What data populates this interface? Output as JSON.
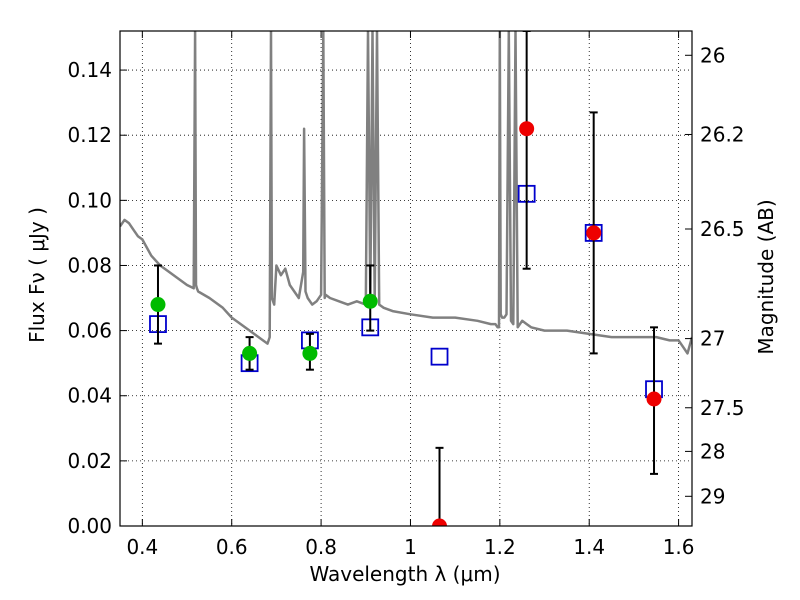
{
  "chart_data": {
    "type": "scatter",
    "xlabel": "Wavelength  λ (μm)",
    "ylabel_left": "Flux  Fν  ( μJy )",
    "ylabel_right": "Magnitude (AB)",
    "xlim": [
      0.35,
      1.63
    ],
    "ylim": [
      0.0,
      0.152
    ],
    "grid": true,
    "x_ticks": [
      0.4,
      0.6,
      0.8,
      1.0,
      1.2,
      1.4,
      1.6
    ],
    "x_tick_labels": [
      "0.4",
      "0.6",
      "0.8",
      "1",
      "1.2",
      "1.4",
      "1.6"
    ],
    "y_ticks": [
      0.0,
      0.02,
      0.04,
      0.06,
      0.08,
      0.1,
      0.12,
      0.14
    ],
    "y_tick_labels": [
      "0.00",
      "0.02",
      "0.04",
      "0.06",
      "0.08",
      "0.10",
      "0.12",
      "0.14"
    ],
    "mag_ticks": [
      26,
      26.2,
      26.5,
      27,
      27.5,
      28,
      29
    ],
    "mag_tick_labels": [
      "26",
      "26.2",
      "26.5",
      "27",
      "27.5",
      "28",
      "29"
    ],
    "colors": {
      "template": "#808080",
      "model": "#0000cc",
      "detected": "#00bb00",
      "nir": "#ee0000",
      "errorbar": "#000000"
    },
    "template_spectrum": {
      "name": "",
      "x": [
        0.35,
        0.36,
        0.37,
        0.38,
        0.39,
        0.4,
        0.42,
        0.44,
        0.46,
        0.48,
        0.5,
        0.515,
        0.518,
        0.52,
        0.522,
        0.525,
        0.55,
        0.58,
        0.6,
        0.62,
        0.65,
        0.67,
        0.68,
        0.685,
        0.688,
        0.69,
        0.695,
        0.7,
        0.71,
        0.72,
        0.73,
        0.74,
        0.75,
        0.76,
        0.762,
        0.765,
        0.77,
        0.78,
        0.79,
        0.8,
        0.805,
        0.808,
        0.81,
        0.82,
        0.84,
        0.86,
        0.88,
        0.9,
        0.905,
        0.91,
        0.915,
        0.92,
        0.925,
        0.93,
        0.94,
        0.96,
        1.0,
        1.05,
        1.1,
        1.15,
        1.18,
        1.19,
        1.195,
        1.198,
        1.2,
        1.202,
        1.205,
        1.21,
        1.215,
        1.22,
        1.225,
        1.23,
        1.235,
        1.24,
        1.25,
        1.26,
        1.27,
        1.3,
        1.35,
        1.4,
        1.45,
        1.5,
        1.55,
        1.58,
        1.6,
        1.61,
        1.62,
        1.63
      ],
      "y": [
        0.092,
        0.094,
        0.093,
        0.091,
        0.089,
        0.088,
        0.083,
        0.08,
        0.078,
        0.076,
        0.074,
        0.073,
        0.152,
        0.074,
        0.073,
        0.072,
        0.07,
        0.067,
        0.064,
        0.062,
        0.059,
        0.057,
        0.056,
        0.058,
        0.152,
        0.07,
        0.068,
        0.08,
        0.077,
        0.079,
        0.074,
        0.072,
        0.07,
        0.078,
        0.122,
        0.072,
        0.07,
        0.068,
        0.069,
        0.071,
        0.152,
        0.07,
        0.071,
        0.07,
        0.069,
        0.068,
        0.069,
        0.068,
        0.152,
        0.07,
        0.152,
        0.069,
        0.152,
        0.068,
        0.067,
        0.066,
        0.065,
        0.064,
        0.064,
        0.063,
        0.062,
        0.062,
        0.061,
        0.061,
        0.152,
        0.065,
        0.064,
        0.064,
        0.065,
        0.152,
        0.063,
        0.062,
        0.152,
        0.061,
        0.063,
        0.062,
        0.061,
        0.06,
        0.06,
        0.059,
        0.058,
        0.058,
        0.058,
        0.057,
        0.057,
        0.055,
        0.053,
        0.058
      ]
    },
    "model_points": {
      "name": "",
      "x": [
        0.435,
        0.64,
        0.775,
        0.91,
        1.065,
        1.26,
        1.41,
        1.545
      ],
      "y": [
        0.062,
        0.05,
        0.057,
        0.061,
        0.052,
        0.102,
        0.09,
        0.042
      ]
    },
    "observed_optical": {
      "name": "",
      "x": [
        0.435,
        0.64,
        0.775,
        0.91
      ],
      "y": [
        0.068,
        0.053,
        0.053,
        0.069
      ],
      "yerr_low": [
        0.056,
        0.048,
        0.048,
        0.06
      ],
      "yerr_high": [
        0.08,
        0.058,
        0.059,
        0.08
      ]
    },
    "observed_nir": {
      "name": "",
      "x": [
        1.065,
        1.26,
        1.41,
        1.545
      ],
      "y": [
        0.0,
        0.122,
        0.09,
        0.039
      ],
      "yerr_low": [
        0.0,
        0.079,
        0.053,
        0.016
      ],
      "yerr_high": [
        0.024,
        0.152,
        0.127,
        0.061
      ]
    }
  }
}
